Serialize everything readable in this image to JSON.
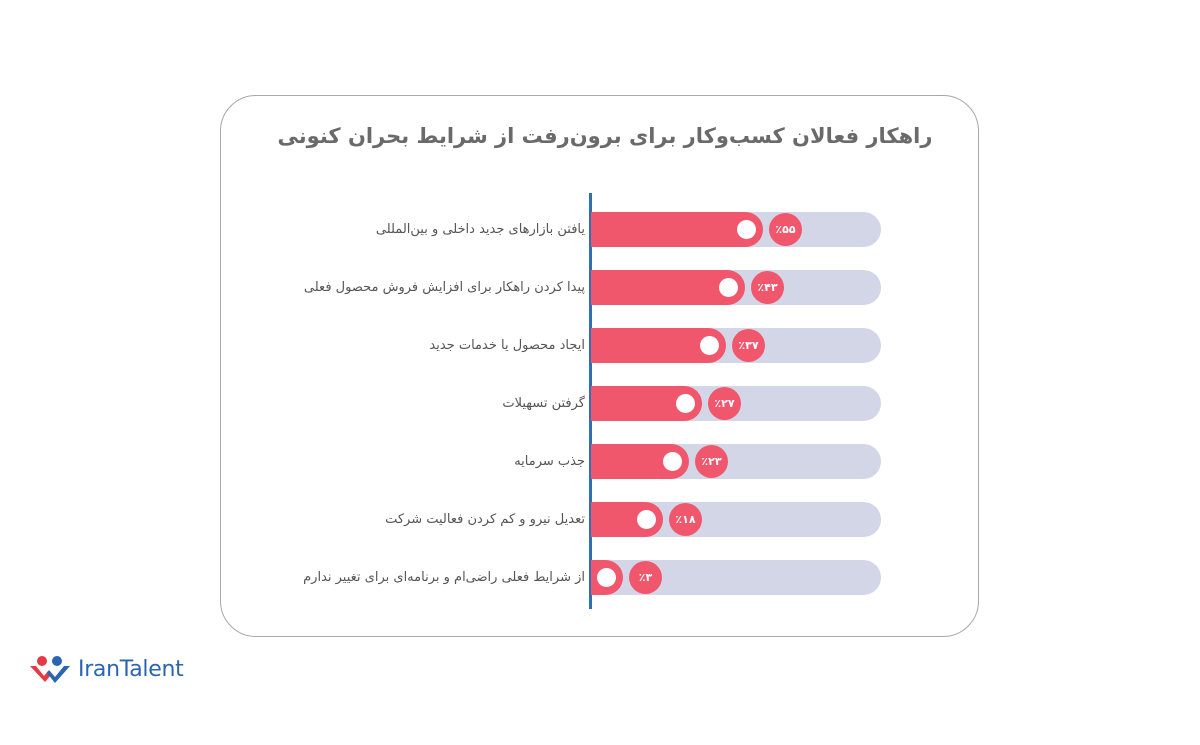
{
  "chart_data": {
    "type": "bar",
    "orientation": "horizontal",
    "title": "راهکار فعالان کسب‌وکار برای برون‌رفت از شرایط بحران کنونی",
    "categories": [
      "یافتن بازارهای جدید داخلی و بین‌المللی",
      "پیدا کردن راهکار برای افزایش فروش محصول فعلی",
      "ایجاد محصول یا خدمات جدید",
      "گرفتن تسهیلات",
      "جذب سرمایه",
      "تعدیل نیرو و کم کردن فعالیت شرکت",
      "از شرایط فعلی راضی‌ام و برنامه‌ای برای تغییر ندارم"
    ],
    "values": [
      55,
      43,
      37,
      27,
      23,
      18,
      3
    ],
    "value_labels": [
      "٪۵۵",
      "٪۴۳",
      "٪۳۷",
      "٪۲۷",
      "٪۲۳",
      "٪۱۸",
      "٪۳"
    ],
    "unit": "%",
    "xlabel": "",
    "ylabel": "",
    "grid": false,
    "legend": null,
    "colors": {
      "fill": "#f0566c",
      "track": "#d3d6e6",
      "axis": "#2f6fb3"
    }
  },
  "layout": {
    "row_tops": [
      212,
      270,
      328,
      386,
      444,
      502,
      560
    ],
    "fill_widths": [
      172,
      154,
      135,
      111,
      98,
      72,
      32
    ]
  },
  "brand": {
    "name": "IranTalent"
  }
}
